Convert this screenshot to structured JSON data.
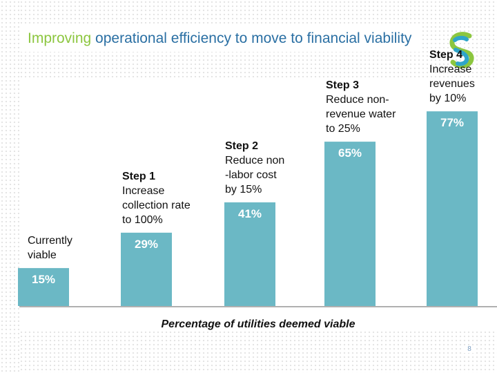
{
  "slide": {
    "title_accent": "Improving",
    "title_rest": " operational efficiency to move to financial viability",
    "page_number": "8"
  },
  "colors": {
    "bar": "#6bb8c5",
    "title": "#2a6fa3",
    "accent": "#8cc63f",
    "value_label": "#ffffff",
    "category_label": "#111111"
  },
  "chart_data": {
    "type": "bar",
    "title": "",
    "xlabel": "Percentage of utilities deemed viable",
    "ylabel": "",
    "ylim": [
      0,
      100
    ],
    "grid": false,
    "categories": [
      [
        "Currently",
        "viable"
      ],
      [
        "Step 1",
        "Increase",
        "collection rate",
        "to 100%"
      ],
      [
        "Step 2",
        "Reduce non",
        "-labor cost",
        "by 15%"
      ],
      [
        "Step 3",
        "Reduce non-",
        "revenue water",
        "to 25%"
      ],
      [
        "Step 4",
        "Increase",
        "revenues",
        "by 10%"
      ]
    ],
    "values": [
      15,
      29,
      41,
      65,
      77
    ],
    "value_labels": [
      "15%",
      "29%",
      "41%",
      "65%",
      "77%"
    ]
  }
}
